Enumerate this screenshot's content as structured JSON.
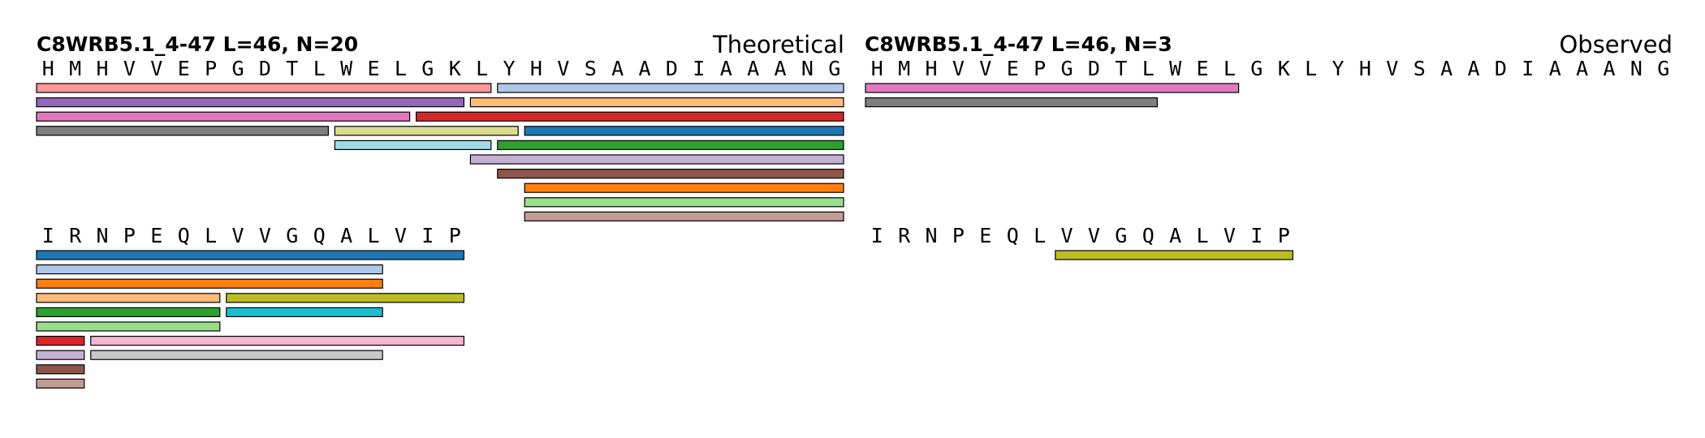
{
  "panels": [
    {
      "title": "C8WRB5.1_4-47  L=46, N=20",
      "mode": "Theoretical",
      "rows": [
        {
          "residues": [
            "H",
            "M",
            "H",
            "V",
            "V",
            "E",
            "P",
            "G",
            "D",
            "T",
            "L",
            "W",
            "E",
            "L",
            "G",
            "K",
            "L",
            "Y",
            "H",
            "V",
            "S",
            "A",
            "A",
            "D",
            "I",
            "A",
            "A",
            "A",
            "N",
            "G"
          ],
          "segments": [
            {
              "start": 1,
              "end": 17,
              "color": "#ff9896"
            },
            {
              "start": 18,
              "end": 30,
              "color": "#aec7e8"
            },
            {
              "start": 1,
              "end": 16,
              "color": "#9467bd"
            },
            {
              "start": 17,
              "end": 30,
              "color": "#ffbb78"
            },
            {
              "start": 1,
              "end": 14,
              "color": "#e377c2"
            },
            {
              "start": 15,
              "end": 30,
              "color": "#d62728"
            },
            {
              "start": 1,
              "end": 11,
              "color": "#7f7f7f"
            },
            {
              "start": 12,
              "end": 18,
              "color": "#dbdb8d"
            },
            {
              "start": 19,
              "end": 30,
              "color": "#1f77b4"
            },
            {
              "start": 12,
              "end": 17,
              "color": "#9edae5"
            },
            {
              "start": 18,
              "end": 30,
              "color": "#2ca02c"
            },
            {
              "start": 17,
              "end": 30,
              "color": "#c5b0d5"
            },
            {
              "start": 18,
              "end": 30,
              "color": "#8c564b"
            },
            {
              "start": 19,
              "end": 30,
              "color": "#ff7f0e"
            },
            {
              "start": 19,
              "end": 30,
              "color": "#98df8a"
            },
            {
              "start": 19,
              "end": 30,
              "color": "#c49c94"
            }
          ]
        },
        {
          "residues": [
            "I",
            "R",
            "N",
            "P",
            "E",
            "Q",
            "L",
            "V",
            "V",
            "G",
            "Q",
            "A",
            "L",
            "V",
            "I",
            "P"
          ],
          "segments": [
            {
              "start": 1,
              "end": 16,
              "color": "#1f77b4"
            },
            {
              "start": 1,
              "end": 13,
              "color": "#aec7e8"
            },
            {
              "start": 1,
              "end": 13,
              "color": "#ff7f0e"
            },
            {
              "start": 1,
              "end": 7,
              "color": "#ffbb78"
            },
            {
              "start": 8,
              "end": 16,
              "color": "#bcbd22"
            },
            {
              "start": 1,
              "end": 7,
              "color": "#2ca02c"
            },
            {
              "start": 8,
              "end": 13,
              "color": "#17becf"
            },
            {
              "start": 1,
              "end": 7,
              "color": "#98df8a"
            },
            {
              "start": 1,
              "end": 2,
              "color": "#d62728"
            },
            {
              "start": 3,
              "end": 16,
              "color": "#f7b6d2"
            },
            {
              "start": 1,
              "end": 2,
              "color": "#c5b0d5"
            },
            {
              "start": 3,
              "end": 13,
              "color": "#c7c7c7"
            },
            {
              "start": 1,
              "end": 2,
              "color": "#8c564b"
            },
            {
              "start": 1,
              "end": 2,
              "color": "#c49c94"
            }
          ]
        }
      ]
    },
    {
      "title": "C8WRB5.1_4-47  L=46, N=3",
      "mode": "Observed",
      "rows": [
        {
          "residues": [
            "H",
            "M",
            "H",
            "V",
            "V",
            "E",
            "P",
            "G",
            "D",
            "T",
            "L",
            "W",
            "E",
            "L",
            "G",
            "K",
            "L",
            "Y",
            "H",
            "V",
            "S",
            "A",
            "A",
            "D",
            "I",
            "A",
            "A",
            "A",
            "N",
            "G"
          ],
          "segments": [
            {
              "start": 1,
              "end": 14,
              "color": "#e377c2"
            },
            {
              "start": 1,
              "end": 11,
              "color": "#7f7f7f"
            }
          ]
        },
        {
          "residues": [
            "I",
            "R",
            "N",
            "P",
            "E",
            "Q",
            "L",
            "V",
            "V",
            "G",
            "Q",
            "A",
            "L",
            "V",
            "I",
            "P"
          ],
          "segments": [
            {
              "start": 8,
              "end": 16,
              "color": "#bcbd22"
            }
          ]
        }
      ]
    }
  ]
}
